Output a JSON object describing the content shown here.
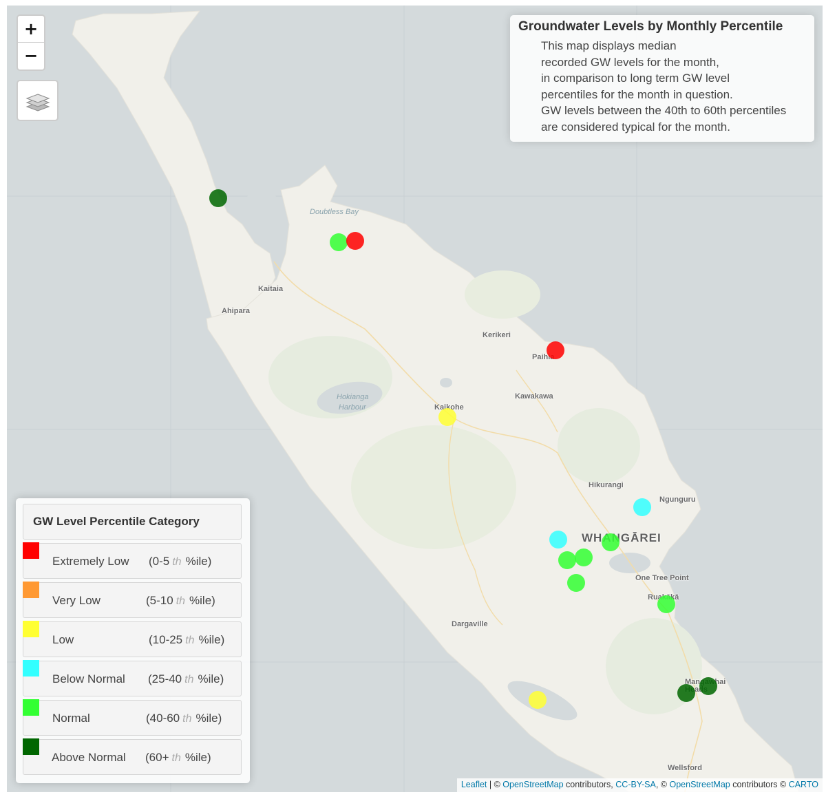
{
  "info": {
    "title": "Groundwater Levels by Monthly Percentile",
    "lines": [
      "This map displays median",
      "recorded GW levels for the month,",
      "in comparison to long term GW level",
      "percentiles for the month in question.",
      "GW levels between the 40th to 60th percentiles",
      "are considered typical for the month."
    ]
  },
  "controls": {
    "zoom_in": "+",
    "zoom_out": "−",
    "layers_icon": "layers-icon"
  },
  "legend": {
    "title": "GW Level Percentile Category",
    "items": [
      {
        "label": "Extremely Low",
        "range_start": "(0-5",
        "th": "th",
        "range_end": "%ile)",
        "color": "#ff0000"
      },
      {
        "label": "Very Low",
        "range_start": "(5-10",
        "th": "th",
        "range_end": "%ile)",
        "color": "#ff9933"
      },
      {
        "label": "Low",
        "range_start": "(10-25",
        "th": "th",
        "range_end": "%ile)",
        "color": "#ffff33"
      },
      {
        "label": "Below Normal",
        "range_start": "(25-40",
        "th": "th",
        "range_end": "%ile)",
        "color": "#33ffff"
      },
      {
        "label": "Normal",
        "range_start": "(40-60",
        "th": "th",
        "range_end": "%ile)",
        "color": "#33ff33"
      },
      {
        "label": "Above Normal",
        "range_start": "(60+",
        "th": "th",
        "range_end": "%ile)",
        "color": "#006600"
      }
    ]
  },
  "places": {
    "kaitaia": "Kaitaia",
    "ahipara": "Ahipara",
    "kerikeri": "Kerikeri",
    "paihia": "Paihia",
    "kawakawa": "Kawakawa",
    "kaikohe": "Kaikohe",
    "hikurangi": "Hikurangi",
    "ngunguru": "Ngunguru",
    "whangarei": "WHANGĀREI",
    "one_tree_point": "One Tree Point",
    "ruakaka": "Ruakākā",
    "dargaville": "Dargaville",
    "mangawhai": "Mangawhai Heads",
    "wellsford": "Wellsford",
    "doubtless_bay": "Doubtless Bay",
    "hokianga_1": "Hokianga",
    "hokianga_2": "Harbour"
  },
  "stations": [
    {
      "category": "Above Normal",
      "color": "#006600"
    },
    {
      "category": "Normal",
      "color": "#33ff33"
    },
    {
      "category": "Extremely Low",
      "color": "#ff0000"
    },
    {
      "category": "Extremely Low",
      "color": "#ff0000"
    },
    {
      "category": "Low",
      "color": "#ffff33"
    },
    {
      "category": "Below Normal",
      "color": "#33ffff"
    },
    {
      "category": "Below Normal",
      "color": "#33ffff"
    },
    {
      "category": "Normal",
      "color": "#33ff33"
    },
    {
      "category": "Normal",
      "color": "#33ff33"
    },
    {
      "category": "Normal",
      "color": "#33ff33"
    },
    {
      "category": "Normal",
      "color": "#33ff33"
    },
    {
      "category": "Normal",
      "color": "#33ff33"
    },
    {
      "category": "Low",
      "color": "#ffff33"
    },
    {
      "category": "Above Normal",
      "color": "#006600"
    },
    {
      "category": "Above Normal",
      "color": "#006600"
    }
  ],
  "attribution": {
    "leaflet": "Leaflet",
    "sep1": " | © ",
    "osm1": "OpenStreetMap",
    "contrib1": " contributors, ",
    "ccbysa": "CC-BY-SA",
    "sep2": ", © ",
    "osm2": "OpenStreetMap",
    "contrib2": " contributors © ",
    "carto": "CARTO"
  }
}
